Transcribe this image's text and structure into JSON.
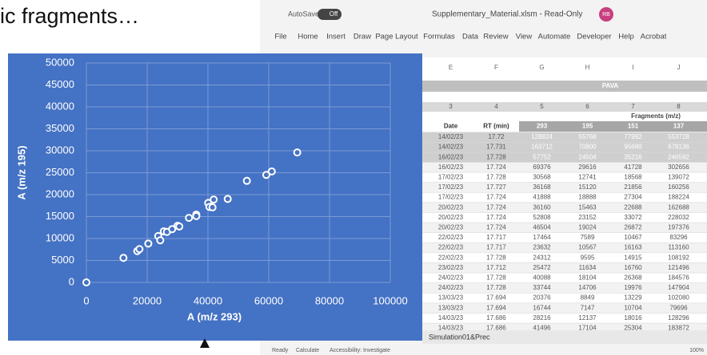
{
  "slide_text": "ic fragments…",
  "chart_data": {
    "type": "scatter",
    "xlabel": "A (m/z 293)",
    "ylabel": "A (m/z 195)",
    "color": "#4472c4",
    "grid": true,
    "x": [
      0,
      12200,
      16744,
      17464,
      20376,
      23632,
      24312,
      25472,
      26500,
      28216,
      30000,
      30568,
      33744,
      36160,
      36168,
      40088,
      40500,
      41496,
      41888,
      46504,
      52808,
      59200,
      61000,
      69376
    ],
    "values": [
      0,
      5600,
      7147,
      7589,
      8849,
      10567,
      9595,
      11634,
      11500,
      12137,
      12900,
      12741,
      14706,
      15463,
      15120,
      18104,
      17200,
      17104,
      18888,
      19024,
      23152,
      24500,
      25300,
      29616
    ],
    "xlim": [
      0,
      100000
    ],
    "xticks": [
      0,
      20000,
      40000,
      60000,
      80000,
      100000
    ],
    "ylim": [
      0,
      50000
    ],
    "yticks": [
      0,
      5000,
      10000,
      15000,
      20000,
      25000,
      30000,
      35000,
      40000,
      45000,
      50000
    ]
  },
  "excel": {
    "autosave": "AutoSave",
    "toggle": "Off",
    "filename": "Supplementary_Material.xlsm - Read-Only",
    "user": "RB",
    "menu": [
      "File",
      "Home",
      "Insert",
      "Draw",
      "Page Layout",
      "Formulas",
      "Data",
      "Review",
      "View",
      "Automate",
      "Developer",
      "Help",
      "Acrobat"
    ],
    "columns": [
      "E",
      "F",
      "G",
      "H",
      "I",
      "J"
    ],
    "group": "PAVA",
    "numbers": [
      "3",
      "4",
      "5",
      "6",
      "7",
      "8"
    ],
    "fragments": "Fragments (m/z)",
    "header": [
      "Date",
      "RT (min)",
      "293",
      "195",
      "151",
      "137"
    ],
    "rows": [
      [
        "14/02/23",
        "17.72",
        "128824",
        "55768",
        "77992",
        "553728"
      ],
      [
        "14/02/23",
        "17.731",
        "163712",
        "70800",
        "95680",
        "678136"
      ],
      [
        "16/02/23",
        "17.728",
        "57752",
        "24504",
        "35216",
        "246592"
      ],
      [
        "16/02/23",
        "17.724",
        "69376",
        "29616",
        "41728",
        "302656"
      ],
      [
        "17/02/23",
        "17.728",
        "30568",
        "12741",
        "18568",
        "139072"
      ],
      [
        "17/02/23",
        "17.727",
        "36168",
        "15120",
        "21856",
        "160256"
      ],
      [
        "17/02/23",
        "17.724",
        "41888",
        "18888",
        "27304",
        "188224"
      ],
      [
        "20/02/23",
        "17.724",
        "36160",
        "15463",
        "22688",
        "162688"
      ],
      [
        "20/02/23",
        "17.724",
        "52808",
        "23152",
        "33072",
        "228032"
      ],
      [
        "20/02/23",
        "17.724",
        "46504",
        "19024",
        "26872",
        "197376"
      ],
      [
        "22/02/23",
        "17.717",
        "17464",
        "7589",
        "10467",
        "83296"
      ],
      [
        "22/02/23",
        "17.717",
        "23632",
        "10567",
        "16163",
        "113160"
      ],
      [
        "22/02/23",
        "17.728",
        "24312",
        "9595",
        "14915",
        "108192"
      ],
      [
        "23/02/23",
        "17.712",
        "25472",
        "11634",
        "16760",
        "121496"
      ],
      [
        "24/02/23",
        "17.728",
        "40088",
        "18104",
        "26368",
        "184576"
      ],
      [
        "24/02/23",
        "17.728",
        "33744",
        "14706",
        "19976",
        "147904"
      ],
      [
        "13/03/23",
        "17.694",
        "20376",
        "8849",
        "13229",
        "102080"
      ],
      [
        "13/03/23",
        "17.694",
        "16744",
        "7147",
        "10704",
        "79696"
      ],
      [
        "14/03/23",
        "17.686",
        "28216",
        "12137",
        "18016",
        "128296"
      ],
      [
        "14/03/23",
        "17.686",
        "41496",
        "17104",
        "25304",
        "183872"
      ]
    ],
    "sheet_tab": "Simulation01&Prec",
    "status": [
      "Ready",
      "Calculate",
      "Accessibility: Investigate"
    ],
    "zoom": "100%"
  }
}
